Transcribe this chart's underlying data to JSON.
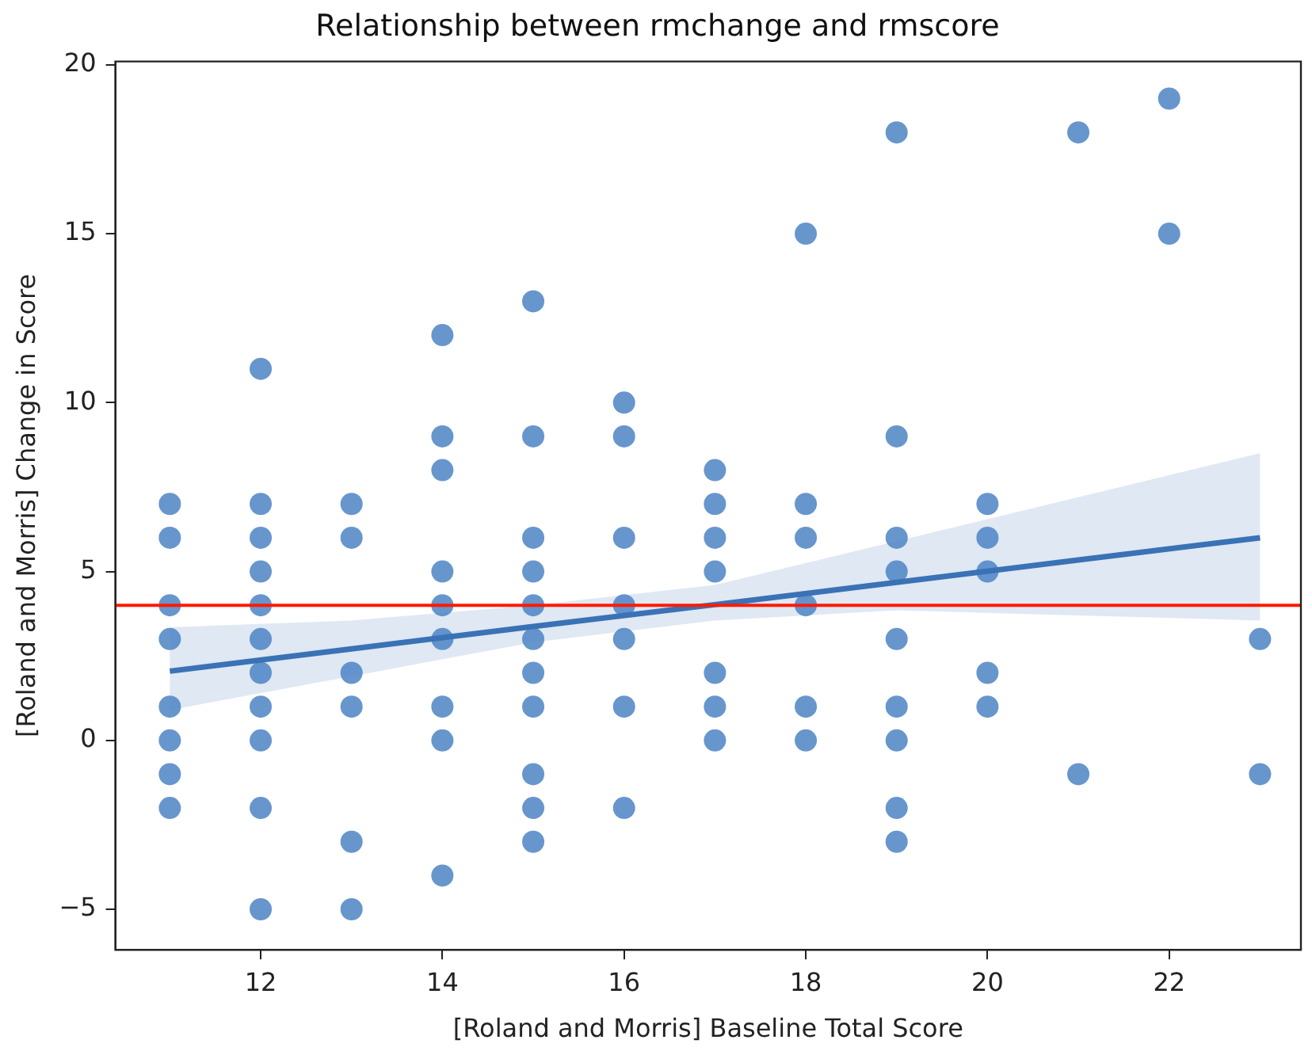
{
  "chart_data": {
    "type": "scatter",
    "title": "Relationship between rmchange and rmscore",
    "xlabel": "[Roland and Morris] Baseline Total Score",
    "ylabel": "[Roland and Morris] Change in Score",
    "xlim": [
      10.4,
      23.45
    ],
    "ylim": [
      -6.2,
      20.1
    ],
    "xticks": [
      12,
      14,
      16,
      18,
      20,
      22
    ],
    "yticks": [
      -5,
      0,
      5,
      10,
      15,
      20
    ],
    "grid": false,
    "legend": false,
    "marker": "circle",
    "series": [
      {
        "color": "#4c84c4",
        "x": [
          11,
          11,
          11,
          11,
          11,
          11,
          11,
          11,
          12,
          12,
          12,
          12,
          12,
          12,
          12,
          12,
          12,
          12,
          12,
          13,
          13,
          13,
          13,
          13,
          13,
          14,
          14,
          14,
          14,
          14,
          14,
          14,
          14,
          14,
          15,
          15,
          15,
          15,
          15,
          15,
          15,
          15,
          15,
          15,
          15,
          16,
          16,
          16,
          16,
          16,
          16,
          16,
          17,
          17,
          17,
          17,
          17,
          17,
          17,
          18,
          18,
          18,
          18,
          18,
          18,
          19,
          19,
          19,
          19,
          19,
          19,
          19,
          19,
          19,
          20,
          20,
          20,
          20,
          20,
          21,
          21,
          22,
          22,
          23,
          23
        ],
        "values": [
          7,
          6,
          4,
          3,
          1,
          0,
          -1,
          -2,
          11,
          7,
          6,
          5,
          4,
          3,
          2,
          1,
          0,
          -2,
          -5,
          7,
          6,
          2,
          1,
          -3,
          -5,
          12,
          9,
          8,
          5,
          4,
          3,
          1,
          0,
          -4,
          13,
          9,
          6,
          5,
          4,
          3,
          2,
          1,
          -1,
          -2,
          -3,
          10,
          9,
          6,
          4,
          3,
          1,
          -2,
          8,
          7,
          6,
          5,
          2,
          1,
          0,
          15,
          7,
          6,
          4,
          1,
          0,
          18,
          9,
          6,
          5,
          3,
          1,
          0,
          -2,
          -3,
          7,
          6,
          5,
          2,
          1,
          18,
          -1,
          19,
          15,
          3,
          -1
        ]
      },
      {
        "type": "line",
        "color": "#3a72b5",
        "marker": "none",
        "x": [
          11,
          13,
          15,
          17,
          19,
          21,
          23
        ],
        "values": [
          2.05,
          2.71,
          3.37,
          4.02,
          4.68,
          5.34,
          6.0
        ],
        "lower": [
          0.9,
          1.9,
          2.9,
          3.55,
          3.85,
          3.7,
          3.55
        ],
        "upper": [
          3.35,
          3.55,
          4.0,
          4.6,
          5.9,
          7.2,
          8.5
        ]
      }
    ],
    "ref_lines": [
      {
        "axis": "y",
        "value": 4,
        "color": "#ff1a00",
        "line_style": "solid"
      }
    ]
  }
}
